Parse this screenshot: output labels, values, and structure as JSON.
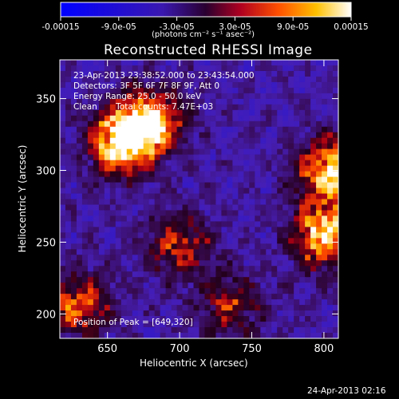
{
  "colorbar": {
    "tick_labels": [
      "-0.00015",
      "-9.0e-05",
      "-3.0e-05",
      "3.0e-05",
      "9.0e-05",
      "0.00015"
    ],
    "tick_values": [
      -0.00015,
      -9e-05,
      -3e-05,
      3e-05,
      9e-05,
      0.00015
    ],
    "range": [
      -0.00015,
      0.00015
    ],
    "units_label": "(photons cm⁻² s⁻¹ asec⁻²)"
  },
  "chart_data": {
    "type": "heatmap",
    "title": "Reconstructed RHESSI Image",
    "xlabel": "Heliocentric X (arcsec)",
    "ylabel": "Heliocentric Y (arcsec)",
    "xlim": [
      617,
      810
    ],
    "ylim": [
      183,
      377
    ],
    "x_ticks": [
      650,
      700,
      750,
      800
    ],
    "y_ticks": [
      200,
      250,
      300,
      350
    ],
    "annotations": [
      "23-Apr-2013 23:38:52.000 to 23:43:54.000",
      "Detectors: 3F 5F 6F 7F 8F 9F, Att 0",
      "Energy Range: 25.0 - 50.0 keV",
      "Clean       Total counts: 7.47E+03"
    ],
    "peak_label": "Position of Peak = [649,320]",
    "peak": [
      649,
      320
    ],
    "bright_regions": [
      {
        "x": 660,
        "y": 320,
        "level": 1.0
      },
      {
        "x": 680,
        "y": 335,
        "level": 0.8
      },
      {
        "x": 805,
        "y": 300,
        "level": 0.9
      },
      {
        "x": 800,
        "y": 255,
        "level": 0.85
      },
      {
        "x": 630,
        "y": 205,
        "level": 0.6
      },
      {
        "x": 700,
        "y": 248,
        "level": 0.5
      },
      {
        "x": 735,
        "y": 205,
        "level": 0.45
      }
    ]
  },
  "footer_timestamp": "24-Apr-2013 02:16"
}
